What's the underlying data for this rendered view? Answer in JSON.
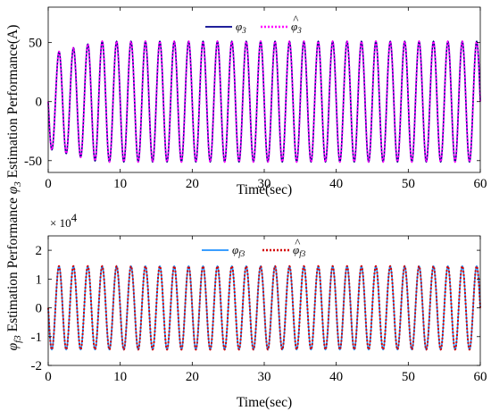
{
  "chart_data": [
    {
      "type": "line",
      "xlabel": "Time(sec)",
      "ylabel": "Estimation Performance(A)",
      "ylabel_symbol": "φ",
      "ylabel_symbol_sub": "3",
      "xlim": [
        0,
        60
      ],
      "ylim": [
        -60,
        80
      ],
      "xticks": [
        "0",
        "10",
        "20",
        "30",
        "40",
        "50",
        "60"
      ],
      "yticks": [
        "50",
        "0",
        "-50"
      ],
      "ytick_values": [
        50,
        0,
        -50
      ],
      "xtick_values": [
        0,
        10,
        20,
        30,
        40,
        50,
        60
      ],
      "legend_position": "top-center",
      "signal": {
        "frequency_hz": 0.5,
        "steady_amplitude": 51,
        "initial_amplitude": 40,
        "settling_time_sec": 7,
        "initial_value": 0
      },
      "series": [
        {
          "name": "φ",
          "sub": "3",
          "hat": false,
          "color": "#00008B",
          "style": "solid"
        },
        {
          "name": "φ",
          "sub": "3",
          "hat": true,
          "color": "#FF00FF",
          "style": "dotted"
        }
      ]
    },
    {
      "type": "line",
      "xlabel": "Time(sec)",
      "ylabel": "Estimation Performance",
      "ylabel_symbol": "φ",
      "ylabel_symbol_sub": "f3",
      "y_multiplier": "× 10",
      "y_multiplier_exp": "4",
      "xlim": [
        0,
        60
      ],
      "ylim": [
        -20000,
        25000
      ],
      "xticks": [
        "0",
        "10",
        "20",
        "30",
        "40",
        "50",
        "60"
      ],
      "yticks": [
        "2",
        "1",
        "0",
        "-1",
        "-2"
      ],
      "ytick_values": [
        20000,
        10000,
        0,
        -10000,
        -20000
      ],
      "xtick_values": [
        0,
        10,
        20,
        30,
        40,
        50,
        60
      ],
      "legend_position": "top-center",
      "signal": {
        "frequency_hz": 0.5,
        "amplitude": 14500,
        "initial_value": 0
      },
      "series": [
        {
          "name": "φ",
          "sub": "f3",
          "hat": false,
          "color": "#1E90FF",
          "style": "solid"
        },
        {
          "name": "φ",
          "sub": "f3",
          "hat": true,
          "color": "#D40000",
          "style": "dotted"
        }
      ]
    }
  ]
}
